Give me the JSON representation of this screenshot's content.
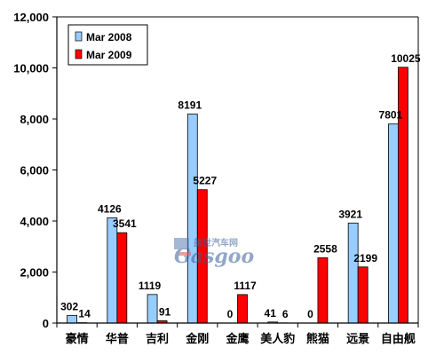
{
  "chart_data": {
    "type": "bar",
    "title": "",
    "xlabel": "",
    "ylabel": "",
    "ylim": [
      0,
      12000
    ],
    "yticks": [
      "0",
      "2,000",
      "4,000",
      "6,000",
      "8,000",
      "10,000",
      "12,000"
    ],
    "ytick_values": [
      0,
      2000,
      4000,
      6000,
      8000,
      10000,
      12000
    ],
    "grid": false,
    "legend_position": "top-left",
    "categories": [
      "豪情",
      "华普",
      "吉利",
      "金刚",
      "金鹰",
      "美人豹",
      "熊猫",
      "远景",
      "自由舰"
    ],
    "series": [
      {
        "name": "Mar 2008",
        "color": "#99CCFF",
        "values": [
          302,
          4126,
          1119,
          8191,
          0,
          41,
          0,
          3921,
          7801
        ]
      },
      {
        "name": "Mar 2009",
        "color": "#FF0000",
        "values": [
          14,
          3541,
          91,
          5227,
          1117,
          6,
          2558,
          2199,
          10025
        ]
      }
    ]
  },
  "watermark": {
    "text_cn": "盖世汽车网",
    "text_en": "Gasgoo"
  }
}
